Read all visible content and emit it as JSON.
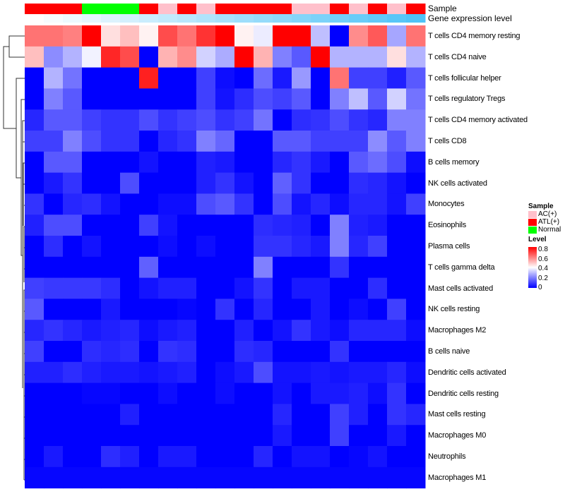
{
  "chart_data": {
    "type": "heatmap",
    "title": "",
    "annotation_tracks": [
      {
        "name": "Sample",
        "values": [
          "ATL(+)",
          "ATL(+)",
          "ATL(+)",
          "Normal",
          "Normal",
          "Normal",
          "ATL(+)",
          "AC(+)",
          "ATL(+)",
          "AC(+)",
          "ATL(+)",
          "ATL(+)",
          "ATL(+)",
          "ATL(+)",
          "AC(+)",
          "AC(+)",
          "ATL(+)",
          "AC(+)",
          "ATL(+)",
          "AC(+)",
          "ATL(+)"
        ]
      },
      {
        "name": "Gene expression level",
        "values": "increasing low to high across columns"
      }
    ],
    "rows": [
      "T cells CD4 memory resting",
      "T cells CD4 naive",
      "T cells follicular helper",
      "T cells regulatory  Tregs",
      "T cells CD4 memory activated",
      "T cells CD8",
      "B cells memory",
      "NK cells activated",
      "Monocytes",
      "Eosinophils",
      "Plasma cells",
      "T cells gamma delta",
      "Mast cells activated",
      "NK cells resting",
      "Macrophages M2",
      "B cells naive",
      "Dendritic cells activated",
      "Dendritic cells resting",
      "Mast cells resting",
      "Macrophages M0",
      "Neutrophils",
      "Macrophages M1"
    ],
    "values": [
      [
        0.62,
        0.62,
        0.6,
        0.8,
        0.45,
        0.5,
        0.42,
        0.68,
        0.62,
        0.72,
        0.8,
        0.42,
        0.37,
        0.8,
        0.8,
        0.3,
        0,
        0.58,
        0.66,
        0.26,
        0.62
      ],
      [
        0.5,
        0.22,
        0.28,
        0.38,
        0.74,
        0.68,
        0,
        0.52,
        0.58,
        0.33,
        0.27,
        0.8,
        0.52,
        0.2,
        0.14,
        0.8,
        0.28,
        0.28,
        0.28,
        0.45,
        0.28
      ],
      [
        0,
        0.28,
        0.18,
        0,
        0,
        0,
        0.75,
        0,
        0,
        0.1,
        0.02,
        0,
        0.17,
        0.04,
        0.24,
        0,
        0.62,
        0.1,
        0.1,
        0.05,
        0.14
      ],
      [
        0,
        0.2,
        0.14,
        0,
        0,
        0,
        0,
        0,
        0,
        0.1,
        0.03,
        0.07,
        0.12,
        0.1,
        0.14,
        0,
        0.2,
        0.3,
        0.14,
        0.33,
        0.18
      ],
      [
        0.06,
        0.14,
        0.14,
        0.1,
        0.08,
        0.08,
        0.12,
        0.08,
        0.1,
        0.12,
        0.08,
        0.1,
        0.18,
        0,
        0.07,
        0.08,
        0.12,
        0.08,
        0.06,
        0.2,
        0.2
      ],
      [
        0.1,
        0.1,
        0.2,
        0.12,
        0.08,
        0.08,
        0,
        0.06,
        0.08,
        0.2,
        0.16,
        0,
        0,
        0.14,
        0.14,
        0.1,
        0.1,
        0.1,
        0.22,
        0.14,
        0.2
      ],
      [
        0,
        0.14,
        0.14,
        0,
        0,
        0,
        0.03,
        0,
        0,
        0.05,
        0.04,
        0,
        0,
        0.06,
        0.08,
        0.04,
        0,
        0.14,
        0.17,
        0.12,
        0.02
      ],
      [
        0,
        0.04,
        0.08,
        0,
        0,
        0.12,
        0,
        0,
        0,
        0.05,
        0.08,
        0.03,
        0,
        0.15,
        0.08,
        0,
        0,
        0.07,
        0.06,
        0.03,
        0
      ],
      [
        0.08,
        0,
        0.06,
        0.07,
        0.03,
        0,
        0,
        0.02,
        0.02,
        0.12,
        0.14,
        0.08,
        0,
        0.12,
        0.03,
        0.06,
        0.02,
        0.06,
        0.06,
        0.03,
        0.1
      ],
      [
        0.05,
        0.12,
        0.12,
        0,
        0,
        0,
        0.1,
        0.03,
        0,
        0,
        0,
        0,
        0.07,
        0.06,
        0.05,
        0,
        0.2,
        0.05,
        0.04,
        0,
        0
      ],
      [
        0,
        0.07,
        0,
        0.03,
        0,
        0,
        0,
        0.02,
        0,
        0.02,
        0,
        0,
        0.08,
        0.08,
        0.06,
        0.04,
        0.2,
        0.06,
        0.1,
        0,
        0
      ],
      [
        0,
        0,
        0,
        0,
        0,
        0,
        0.15,
        0,
        0,
        0,
        0,
        0,
        0.2,
        0,
        0,
        0,
        0.08,
        0,
        0,
        0,
        0
      ],
      [
        0.1,
        0.09,
        0.09,
        0.09,
        0.07,
        0,
        0.03,
        0.05,
        0.05,
        0,
        0,
        0.03,
        0.08,
        0,
        0.04,
        0.04,
        0,
        0,
        0.07,
        0,
        0
      ],
      [
        0.14,
        0,
        0,
        0,
        0.04,
        0,
        0,
        0,
        0.01,
        0,
        0.08,
        0,
        0.06,
        0,
        0,
        0.04,
        0,
        0.02,
        0,
        0.1,
        0
      ],
      [
        0.06,
        0.08,
        0.06,
        0.04,
        0.05,
        0.06,
        0.02,
        0.04,
        0.05,
        0,
        0,
        0.05,
        0,
        0.03,
        0.08,
        0.04,
        0.02,
        0.06,
        0.06,
        0.06,
        0.02
      ],
      [
        0.1,
        0,
        0,
        0.07,
        0.06,
        0.07,
        0,
        0.08,
        0.07,
        0,
        0,
        0.07,
        0.06,
        0,
        0,
        0,
        0.08,
        0,
        0,
        0,
        0
      ],
      [
        0.05,
        0.05,
        0.07,
        0.05,
        0.04,
        0.04,
        0.03,
        0.04,
        0.05,
        0,
        0.02,
        0.04,
        0.12,
        0.03,
        0.03,
        0.04,
        0.03,
        0.04,
        0.04,
        0.06,
        0.02
      ],
      [
        0,
        0,
        0,
        0.01,
        0.01,
        0,
        0,
        0.02,
        0,
        0,
        0.02,
        0,
        0,
        0.03,
        0,
        0.04,
        0.04,
        0.05,
        0.02,
        0.08,
        0
      ],
      [
        0,
        0,
        0,
        0,
        0,
        0.05,
        0,
        0,
        0,
        0,
        0,
        0,
        0,
        0.06,
        0,
        0,
        0.1,
        0.05,
        0,
        0.08,
        0.06
      ],
      [
        0,
        0,
        0,
        0,
        0,
        0,
        0,
        0,
        0,
        0,
        0,
        0,
        0,
        0.04,
        0,
        0,
        0.1,
        0,
        0,
        0.04,
        0
      ],
      [
        0,
        0.04,
        0,
        0,
        0.07,
        0.05,
        0,
        0.04,
        0.04,
        0,
        0,
        0,
        0.06,
        0,
        0.03,
        0.03,
        0,
        0.01,
        0.03,
        0,
        0
      ],
      [
        0.01,
        0.01,
        0.01,
        0.01,
        0.01,
        0.01,
        0.01,
        0.01,
        0.01,
        0.01,
        0.01,
        0.01,
        0.01,
        0.01,
        0.01,
        0.01,
        0.01,
        0.01,
        0.01,
        0.01,
        0.01
      ]
    ],
    "color_scale": {
      "min": 0,
      "mid": 0.4,
      "max": 0.8,
      "low": "#0000ff",
      "midColor": "#ffffff",
      "high": "#ff0000"
    },
    "legend": {
      "sample_title": "Sample",
      "sample_items": [
        {
          "label": "AC(+)",
          "color": "#ffc0cb"
        },
        {
          "label": "ATL(+)",
          "color": "#ff0000"
        },
        {
          "label": "Normal",
          "color": "#00ff00"
        }
      ],
      "level_title": "Level",
      "level_ticks": [
        "0.8",
        "0.6",
        "0.4",
        "0.2",
        "0"
      ],
      "placement": "right"
    },
    "annotation_labels": [
      "Sample",
      "Gene expression level"
    ],
    "expression_gradient": [
      "#ffffff",
      "#4fc3f7"
    ]
  }
}
